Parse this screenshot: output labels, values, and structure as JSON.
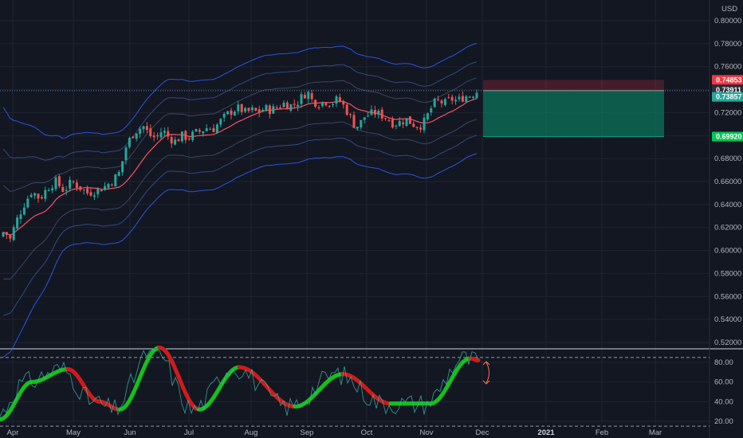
{
  "chart_data": {
    "type": "candlestick",
    "currency": "USD",
    "y_ticks": [
      "0.80000",
      "0.78000",
      "0.76000",
      "0.74000",
      "0.72000",
      "0.70000",
      "0.68000",
      "0.66000",
      "0.64000",
      "0.62000",
      "0.60000",
      "0.58000",
      "0.56000",
      "0.54000",
      "0.52000"
    ],
    "x_ticks": [
      {
        "label": "Apr",
        "year": false
      },
      {
        "label": "May",
        "year": false
      },
      {
        "label": "Jun",
        "year": false
      },
      {
        "label": "Jul",
        "year": false
      },
      {
        "label": "Aug",
        "year": false
      },
      {
        "label": "Sep",
        "year": false
      },
      {
        "label": "Oct",
        "year": false
      },
      {
        "label": "Nov",
        "year": false
      },
      {
        "label": "Dec",
        "year": false
      },
      {
        "label": "2021",
        "year": true
      },
      {
        "label": "Feb",
        "year": false
      },
      {
        "label": "Mar",
        "year": false
      }
    ],
    "price_tags": [
      {
        "label": "0.74853",
        "value": 0.74853,
        "color": "#f23645"
      },
      {
        "label": "0.73911",
        "value": 0.73911,
        "color": "#2a2e39"
      },
      {
        "label": "0.73857",
        "value": 0.73857,
        "color": "#26a69a"
      },
      {
        "label": "0.69920",
        "value": 0.6992,
        "color": "#00c853"
      }
    ],
    "position": {
      "entry": 0.73911,
      "stop": 0.74853,
      "target": 0.6992,
      "side": "short"
    },
    "ylim": [
      0.515,
      0.81
    ],
    "close_anchors": [
      [
        0,
        0.612
      ],
      [
        6,
        0.618
      ],
      [
        12,
        0.608
      ],
      [
        20,
        0.625
      ],
      [
        30,
        0.64
      ],
      [
        40,
        0.652
      ],
      [
        50,
        0.645
      ],
      [
        60,
        0.655
      ],
      [
        70,
        0.66
      ],
      [
        80,
        0.652
      ],
      [
        90,
        0.66
      ],
      [
        100,
        0.655
      ],
      [
        110,
        0.65
      ],
      [
        120,
        0.652
      ],
      [
        130,
        0.655
      ],
      [
        140,
        0.66
      ],
      [
        150,
        0.668
      ],
      [
        158,
        0.69
      ],
      [
        165,
        0.7
      ],
      [
        172,
        0.705
      ],
      [
        180,
        0.708
      ],
      [
        188,
        0.7
      ],
      [
        196,
        0.698
      ],
      [
        204,
        0.705
      ],
      [
        212,
        0.698
      ],
      [
        220,
        0.695
      ],
      [
        228,
        0.7
      ],
      [
        236,
        0.698
      ],
      [
        244,
        0.702
      ],
      [
        252,
        0.704
      ],
      [
        260,
        0.707
      ],
      [
        268,
        0.706
      ],
      [
        276,
        0.712
      ],
      [
        284,
        0.718
      ],
      [
        292,
        0.722
      ],
      [
        300,
        0.724
      ],
      [
        308,
        0.72
      ],
      [
        316,
        0.722
      ],
      [
        324,
        0.72
      ],
      [
        332,
        0.724
      ],
      [
        340,
        0.722
      ],
      [
        348,
        0.725
      ],
      [
        356,
        0.728
      ],
      [
        364,
        0.726
      ],
      [
        372,
        0.728
      ],
      [
        380,
        0.735
      ],
      [
        386,
        0.738
      ],
      [
        392,
        0.73
      ],
      [
        400,
        0.728
      ],
      [
        408,
        0.73
      ],
      [
        416,
        0.728
      ],
      [
        424,
        0.732
      ],
      [
        432,
        0.725
      ],
      [
        438,
        0.718
      ],
      [
        444,
        0.71
      ],
      [
        450,
        0.708
      ],
      [
        456,
        0.716
      ],
      [
        462,
        0.718
      ],
      [
        470,
        0.72
      ],
      [
        478,
        0.718
      ],
      [
        486,
        0.715
      ],
      [
        494,
        0.71
      ],
      [
        502,
        0.712
      ],
      [
        510,
        0.714
      ],
      [
        518,
        0.71
      ],
      [
        526,
        0.708
      ],
      [
        532,
        0.712
      ],
      [
        538,
        0.72
      ],
      [
        544,
        0.728
      ],
      [
        550,
        0.73
      ],
      [
        558,
        0.728
      ],
      [
        566,
        0.732
      ],
      [
        574,
        0.73
      ],
      [
        582,
        0.734
      ],
      [
        590,
        0.735
      ],
      [
        598,
        0.7386
      ]
    ],
    "oscillator": {
      "y_ticks": [
        "80.00",
        "60.00",
        "40.00",
        "20.00"
      ],
      "levels": [
        85,
        15
      ],
      "range": [
        0,
        100
      ]
    }
  }
}
